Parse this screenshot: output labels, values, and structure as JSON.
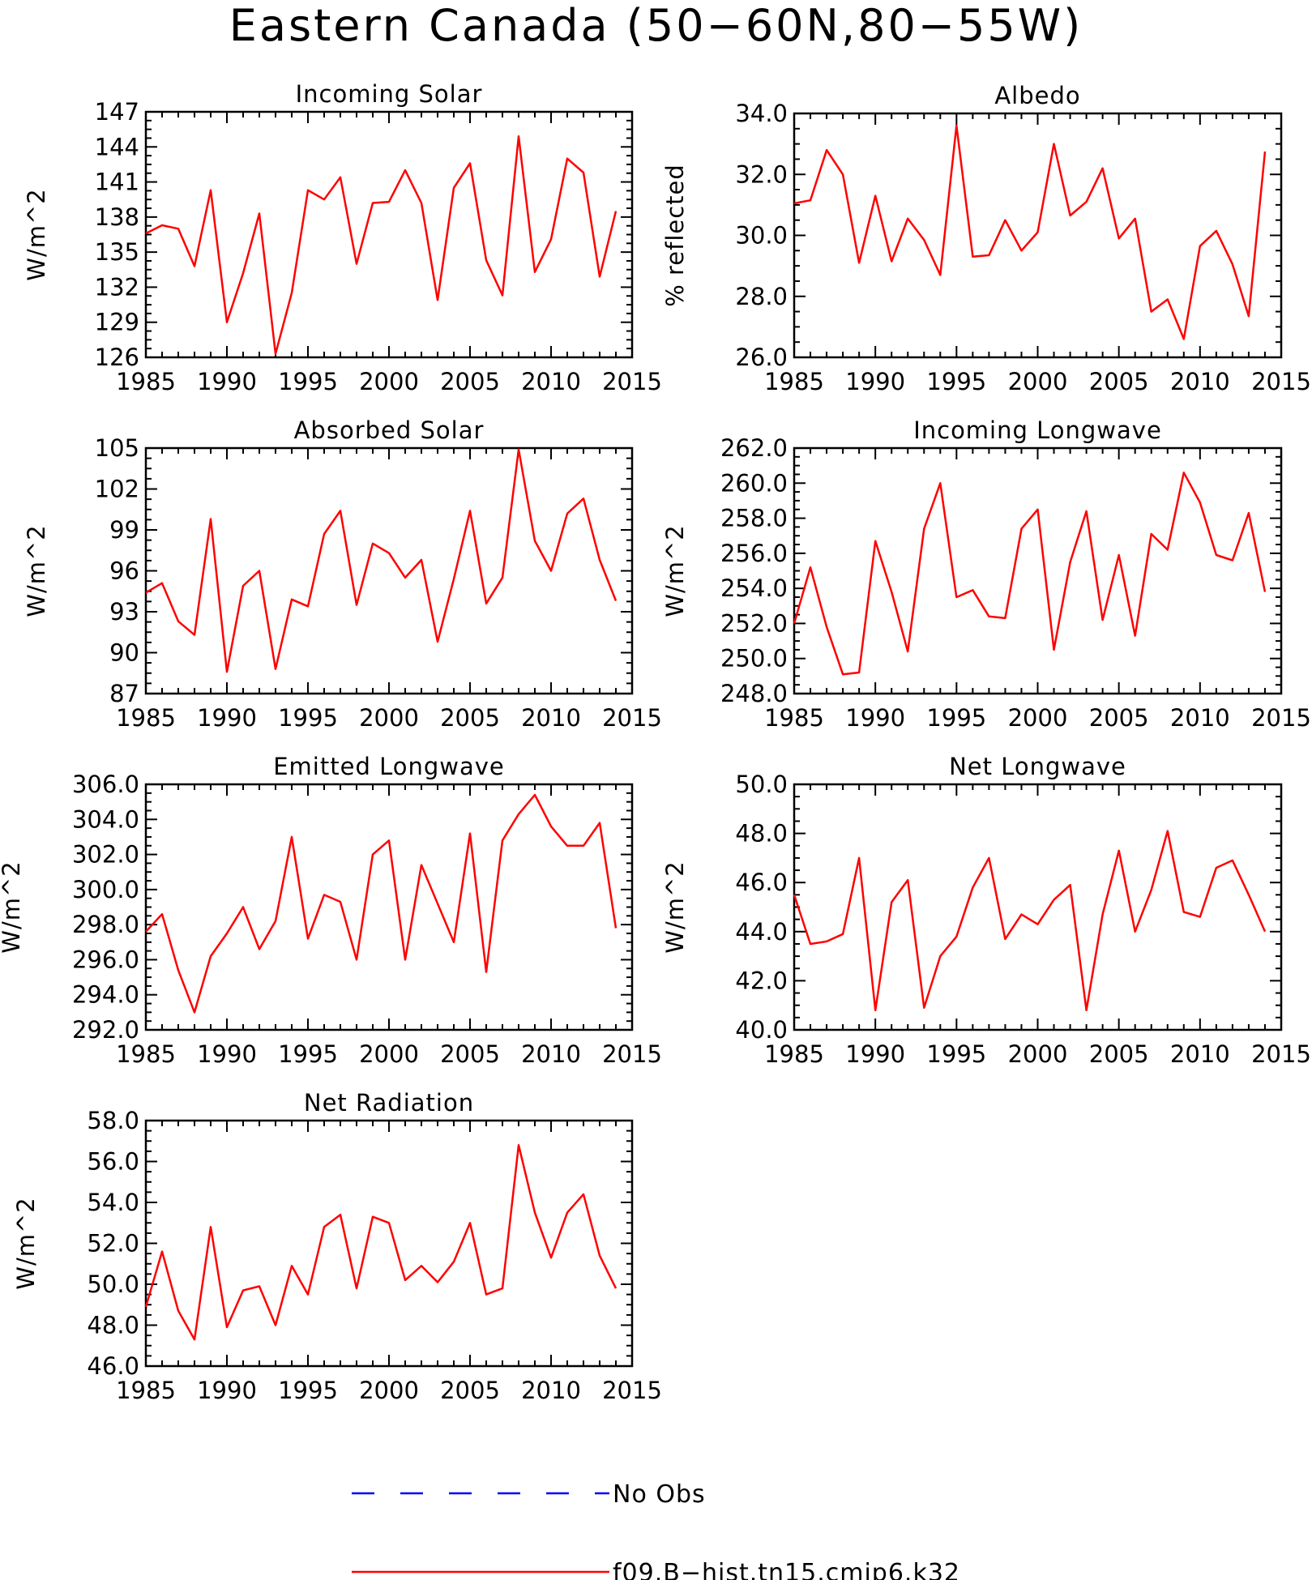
{
  "title": "Eastern Canada (50−60N,80−55W)",
  "colors": {
    "model": "#ff0000",
    "obs": "#0000ff"
  },
  "legend": [
    {
      "label": "No Obs",
      "style": "dashed",
      "color": "#0000ff"
    },
    {
      "label": "f09.B−hist.tn15.cmip6.k32",
      "style": "solid",
      "color": "#ff0000"
    }
  ],
  "chart_data": [
    {
      "type": "line",
      "title": "Incoming Solar",
      "ylabel": "W/m^2",
      "xlim": [
        1985,
        2015
      ],
      "xticks": [
        "1985",
        "1990",
        "1995",
        "2000",
        "2005",
        "2010",
        "2015"
      ],
      "ylim": [
        126,
        147
      ],
      "yticks": [
        "126",
        "129",
        "132",
        "135",
        "138",
        "141",
        "144",
        "147"
      ],
      "x": [
        1985,
        1986,
        1987,
        1988,
        1989,
        1990,
        1991,
        1992,
        1993,
        1994,
        1995,
        1996,
        1997,
        1998,
        1999,
        2000,
        2001,
        2002,
        2003,
        2004,
        2005,
        2006,
        2007,
        2008,
        2009,
        2010,
        2011,
        2012,
        2013,
        2014
      ],
      "series": [
        {
          "name": "f09.B−hist.tn15.cmip6.k32",
          "values": [
            136.6,
            137.3,
            137.0,
            133.8,
            140.3,
            129.0,
            133.2,
            138.3,
            126.3,
            131.5,
            140.3,
            139.5,
            141.4,
            134.0,
            139.2,
            139.3,
            142.0,
            139.2,
            130.9,
            140.5,
            142.6,
            134.3,
            131.3,
            144.9,
            133.3,
            136.1,
            143.0,
            141.8,
            132.9,
            138.5
          ]
        }
      ]
    },
    {
      "type": "line",
      "title": "Albedo",
      "ylabel": "% reflected",
      "xlim": [
        1985,
        2015
      ],
      "xticks": [
        "1985",
        "1990",
        "1995",
        "2000",
        "2005",
        "2010",
        "2015"
      ],
      "ylim": [
        26,
        34
      ],
      "yticks": [
        "26.0",
        "28.0",
        "30.0",
        "32.0",
        "34.0"
      ],
      "x": [
        1985,
        1986,
        1987,
        1988,
        1989,
        1990,
        1991,
        1992,
        1993,
        1994,
        1995,
        1996,
        1997,
        1998,
        1999,
        2000,
        2001,
        2002,
        2003,
        2004,
        2005,
        2006,
        2007,
        2008,
        2009,
        2010,
        2011,
        2012,
        2013,
        2014
      ],
      "series": [
        {
          "name": "f09.B−hist.tn15.cmip6.k32",
          "values": [
            31.05,
            31.15,
            32.8,
            32.0,
            29.1,
            31.3,
            29.15,
            30.55,
            29.85,
            28.7,
            33.6,
            29.3,
            29.35,
            30.5,
            29.5,
            30.1,
            33.0,
            30.65,
            31.1,
            32.2,
            29.9,
            30.55,
            27.5,
            27.9,
            26.6,
            29.65,
            30.15,
            29.05,
            27.35,
            32.75
          ]
        }
      ]
    },
    {
      "type": "line",
      "title": "Absorbed Solar",
      "ylabel": "W/m^2",
      "xlim": [
        1985,
        2015
      ],
      "xticks": [
        "1985",
        "1990",
        "1995",
        "2000",
        "2005",
        "2010",
        "2015"
      ],
      "ylim": [
        87,
        105
      ],
      "yticks": [
        "87",
        "90",
        "93",
        "96",
        "99",
        "102",
        "105"
      ],
      "x": [
        1985,
        1986,
        1987,
        1988,
        1989,
        1990,
        1991,
        1992,
        1993,
        1994,
        1995,
        1996,
        1997,
        1998,
        1999,
        2000,
        2001,
        2002,
        2003,
        2004,
        2005,
        2006,
        2007,
        2008,
        2009,
        2010,
        2011,
        2012,
        2013,
        2014
      ],
      "series": [
        {
          "name": "f09.B−hist.tn15.cmip6.k32",
          "values": [
            94.4,
            95.1,
            92.3,
            91.3,
            99.8,
            88.6,
            94.9,
            96.0,
            88.8,
            93.9,
            93.4,
            98.7,
            100.4,
            93.5,
            98.0,
            97.3,
            95.5,
            96.8,
            90.8,
            95.4,
            100.4,
            93.6,
            95.5,
            104.9,
            98.2,
            96.0,
            100.2,
            101.3,
            96.8,
            93.8
          ]
        }
      ]
    },
    {
      "type": "line",
      "title": "Incoming Longwave",
      "ylabel": "W/m^2",
      "xlim": [
        1985,
        2015
      ],
      "xticks": [
        "1985",
        "1990",
        "1995",
        "2000",
        "2005",
        "2010",
        "2015"
      ],
      "ylim": [
        248,
        262
      ],
      "yticks": [
        "248.0",
        "250.0",
        "252.0",
        "254.0",
        "256.0",
        "258.0",
        "260.0",
        "262.0"
      ],
      "x": [
        1985,
        1986,
        1987,
        1988,
        1989,
        1990,
        1991,
        1992,
        1993,
        1994,
        1995,
        1996,
        1997,
        1998,
        1999,
        2000,
        2001,
        2002,
        2003,
        2004,
        2005,
        2006,
        2007,
        2008,
        2009,
        2010,
        2011,
        2012,
        2013,
        2014
      ],
      "series": [
        {
          "name": "f09.B−hist.tn15.cmip6.k32",
          "values": [
            252.0,
            255.2,
            251.8,
            249.1,
            249.2,
            256.7,
            253.8,
            250.4,
            257.4,
            260.0,
            253.5,
            253.9,
            252.4,
            252.3,
            257.4,
            258.5,
            250.5,
            255.5,
            258.4,
            252.2,
            255.9,
            251.3,
            257.1,
            256.2,
            260.6,
            258.9,
            255.9,
            255.6,
            258.3,
            253.8
          ]
        }
      ]
    },
    {
      "type": "line",
      "title": "Emitted Longwave",
      "ylabel": "W/m^2",
      "xlim": [
        1985,
        2015
      ],
      "xticks": [
        "1985",
        "1990",
        "1995",
        "2000",
        "2005",
        "2010",
        "2015"
      ],
      "ylim": [
        292,
        306
      ],
      "yticks": [
        "292.0",
        "294.0",
        "296.0",
        "298.0",
        "300.0",
        "302.0",
        "304.0",
        "306.0"
      ],
      "x": [
        1985,
        1986,
        1987,
        1988,
        1989,
        1990,
        1991,
        1992,
        1993,
        1994,
        1995,
        1996,
        1997,
        1998,
        1999,
        2000,
        2001,
        2002,
        2003,
        2004,
        2005,
        2006,
        2007,
        2008,
        2009,
        2010,
        2011,
        2012,
        2013,
        2014
      ],
      "series": [
        {
          "name": "f09.B−hist.tn15.cmip6.k32",
          "values": [
            297.6,
            298.6,
            295.4,
            293.0,
            296.2,
            297.5,
            299.0,
            296.6,
            298.2,
            303.0,
            297.2,
            299.7,
            299.3,
            296.0,
            302.0,
            302.8,
            296.0,
            301.4,
            299.2,
            297.0,
            303.2,
            295.3,
            302.8,
            304.3,
            305.4,
            303.6,
            302.5,
            302.5,
            303.8,
            297.8
          ]
        }
      ]
    },
    {
      "type": "line",
      "title": "Net Longwave",
      "ylabel": "W/m^2",
      "xlim": [
        1985,
        2015
      ],
      "xticks": [
        "1985",
        "1990",
        "1995",
        "2000",
        "2005",
        "2010",
        "2015"
      ],
      "ylim": [
        40,
        50
      ],
      "yticks": [
        "40.0",
        "42.0",
        "44.0",
        "46.0",
        "48.0",
        "50.0"
      ],
      "x": [
        1985,
        1986,
        1987,
        1988,
        1989,
        1990,
        1991,
        1992,
        1993,
        1994,
        1995,
        1996,
        1997,
        1998,
        1999,
        2000,
        2001,
        2002,
        2003,
        2004,
        2005,
        2006,
        2007,
        2008,
        2009,
        2010,
        2011,
        2012,
        2013,
        2014
      ],
      "series": [
        {
          "name": "f09.B−hist.tn15.cmip6.k32",
          "values": [
            45.5,
            43.5,
            43.6,
            43.9,
            47.0,
            40.8,
            45.2,
            46.1,
            40.9,
            43.0,
            43.8,
            45.8,
            47.0,
            43.7,
            44.7,
            44.3,
            45.3,
            45.9,
            40.8,
            44.7,
            47.3,
            44.0,
            45.7,
            48.1,
            44.8,
            44.6,
            46.6,
            46.9,
            45.5,
            44.0
          ]
        }
      ]
    },
    {
      "type": "line",
      "title": "Net Radiation",
      "ylabel": "W/m^2",
      "xlim": [
        1985,
        2015
      ],
      "xticks": [
        "1985",
        "1990",
        "1995",
        "2000",
        "2005",
        "2010",
        "2015"
      ],
      "ylim": [
        46,
        58
      ],
      "yticks": [
        "46.0",
        "48.0",
        "50.0",
        "52.0",
        "54.0",
        "56.0",
        "58.0"
      ],
      "x": [
        1985,
        1986,
        1987,
        1988,
        1989,
        1990,
        1991,
        1992,
        1993,
        1994,
        1995,
        1996,
        1997,
        1998,
        1999,
        2000,
        2001,
        2002,
        2003,
        2004,
        2005,
        2006,
        2007,
        2008,
        2009,
        2010,
        2011,
        2012,
        2013,
        2014
      ],
      "series": [
        {
          "name": "f09.B−hist.tn15.cmip6.k32",
          "values": [
            48.9,
            51.6,
            48.7,
            47.3,
            52.8,
            47.9,
            49.7,
            49.9,
            48.0,
            50.9,
            49.5,
            52.8,
            53.4,
            49.8,
            53.3,
            53.0,
            50.2,
            50.9,
            50.1,
            51.1,
            53.0,
            49.5,
            49.8,
            56.8,
            53.5,
            51.3,
            53.5,
            54.4,
            51.4,
            49.8
          ]
        }
      ]
    }
  ]
}
